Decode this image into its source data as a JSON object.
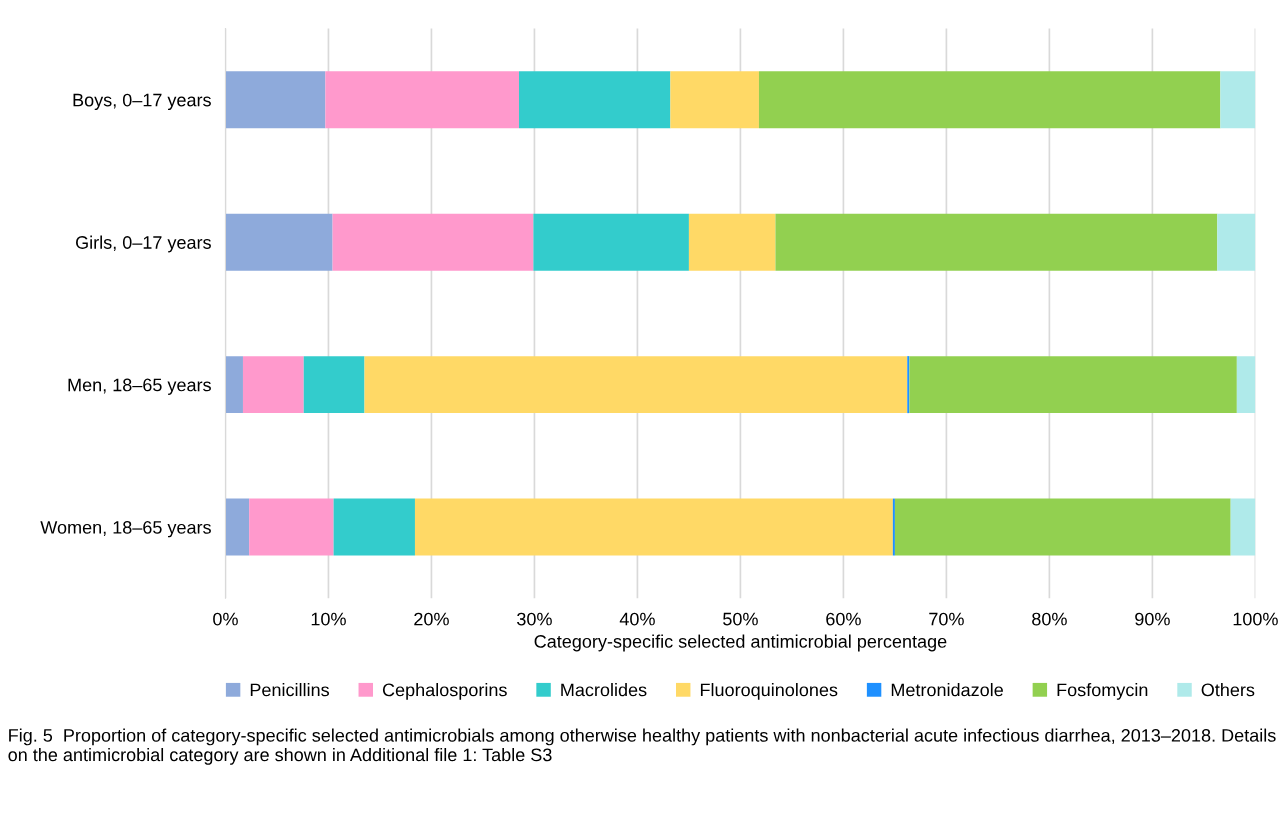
{
  "chart_data": {
    "type": "bar",
    "orientation": "horizontal",
    "stacked": true,
    "categories": [
      "Boys, 0–17 years",
      "Girls, 0–17 years",
      "Men, 18–65 years",
      "Women, 18–65 years"
    ],
    "series": [
      {
        "name": "Penicillins",
        "color": "#8eaadb",
        "values": [
          9.7,
          10.4,
          1.7,
          2.3
        ]
      },
      {
        "name": "Cephalosporins",
        "color": "#ff99cc",
        "values": [
          18.8,
          19.5,
          5.9,
          8.2
        ]
      },
      {
        "name": "Macrolides",
        "color": "#33cccc",
        "values": [
          14.7,
          15.1,
          5.9,
          7.9
        ]
      },
      {
        "name": "Fluoroquinolones",
        "color": "#ffd966",
        "values": [
          8.6,
          8.4,
          52.7,
          46.4
        ]
      },
      {
        "name": "Metronidazole",
        "color": "#1e90ff",
        "values": [
          0,
          0,
          0.2,
          0.2
        ]
      },
      {
        "name": "Fosfomycin",
        "color": "#92d050",
        "values": [
          44.8,
          42.9,
          31.8,
          32.6
        ]
      },
      {
        "name": "Others",
        "color": "#afeaea",
        "values": [
          3.4,
          3.7,
          1.8,
          2.4
        ]
      }
    ],
    "xlim": [
      0,
      100
    ],
    "xticks": [
      {
        "value": 0,
        "label": "0%"
      },
      {
        "value": 10,
        "label": "10%"
      },
      {
        "value": 20,
        "label": "20%"
      },
      {
        "value": 30,
        "label": "30%"
      },
      {
        "value": 40,
        "label": "40%"
      },
      {
        "value": 50,
        "label": "50%"
      },
      {
        "value": 60,
        "label": "60%"
      },
      {
        "value": 70,
        "label": "70%"
      },
      {
        "value": 80,
        "label": "80%"
      },
      {
        "value": 90,
        "label": "90%"
      },
      {
        "value": 100,
        "label": "100%"
      }
    ],
    "xlabel": "Category-specific selected antimicrobial percentage",
    "grid": "x",
    "legend": "bottom",
    "annotations": [
      "Fig. 5  Proportion of category-specific selected antimicrobials among otherwise healthy patients with nonbacterial acute infectious diarrhea, 2013–2018. Details on the antimicrobial category are shown in Additional file 1: Table S3"
    ]
  }
}
